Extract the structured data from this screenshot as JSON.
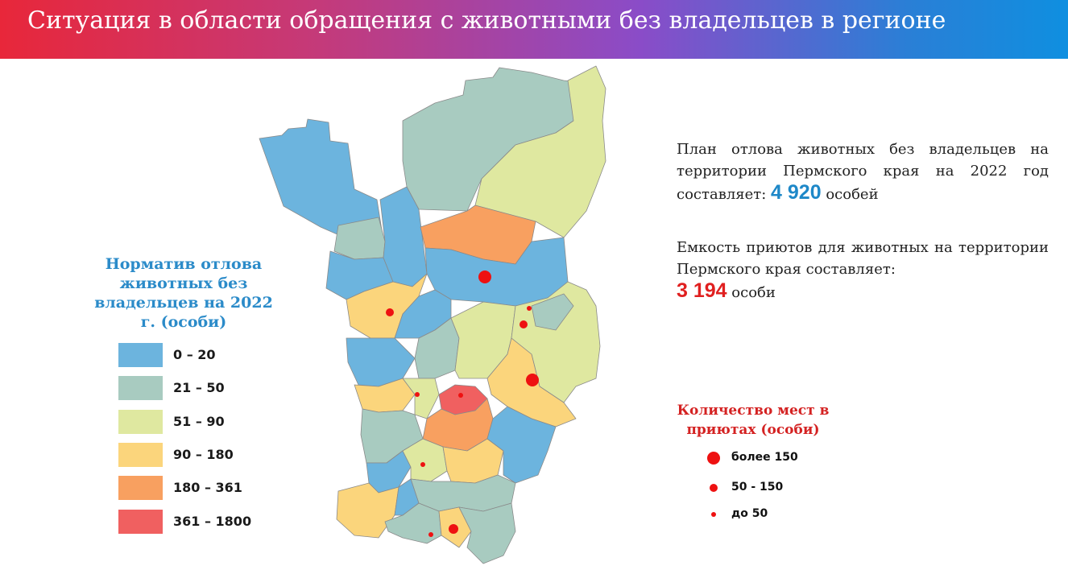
{
  "header": {
    "title": "Ситуация в области обращения с животными без владельцев в регионе"
  },
  "legend": {
    "title": "Норматив отлова животных без владельцев  на 2022 г. (особи)",
    "items": [
      {
        "label": "0 – 20",
        "color": "#6cb4de"
      },
      {
        "label": "21 – 50",
        "color": "#a8cbc0"
      },
      {
        "label": "51 – 90",
        "color": "#dfe8a0"
      },
      {
        "label": "90 – 180",
        "color": "#fbd57c"
      },
      {
        "label": "180 – 361",
        "color": "#f8a060"
      },
      {
        "label": "361 – 1800",
        "color": "#f06060"
      }
    ]
  },
  "plan": {
    "text": "План отлова животных без владельцев на территории Пермского края на 2022 год составляет:",
    "value": "4 920",
    "unit": "особей"
  },
  "capacity": {
    "text": "Емкость приютов для животных на территории Пермского края составляет:",
    "value": "3 194",
    "unit": "особи"
  },
  "shelters": {
    "title": "Количество мест в приютах (особи)",
    "items": [
      {
        "label": "более 150"
      },
      {
        "label": "50 - 150"
      },
      {
        "label": "до 50"
      }
    ]
  },
  "colors": {
    "dot": "#ee1111",
    "value_blue": "#1e88c8",
    "value_red": "#e02020"
  }
}
